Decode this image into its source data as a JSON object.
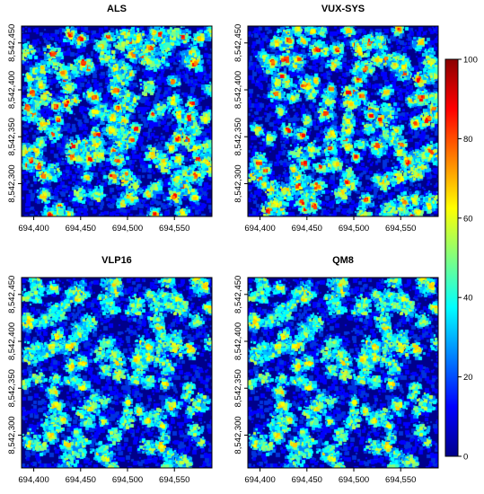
{
  "chart_data": [
    {
      "type": "heatmap",
      "title": "ALS",
      "xlabel": "",
      "ylabel": "",
      "xlim": [
        694387,
        694590
      ],
      "ylim": [
        8542265,
        8542468
      ],
      "x_ticks": [
        {
          "v": 694400,
          "label": "694,400"
        },
        {
          "v": 694450,
          "label": "694,450"
        },
        {
          "v": 694500,
          "label": "694,500"
        },
        {
          "v": 694550,
          "label": "694,550"
        }
      ],
      "y_ticks": [
        {
          "v": 8542300,
          "label": "8,542,300"
        },
        {
          "v": 8542350,
          "label": "8,542,350"
        },
        {
          "v": 8542400,
          "label": "8,542,400"
        },
        {
          "v": 8542450,
          "label": "8,542,450"
        }
      ],
      "intensity": "high",
      "seed": 11
    },
    {
      "type": "heatmap",
      "title": "VUX-SYS",
      "xlabel": "",
      "ylabel": "",
      "xlim": [
        694387,
        694590
      ],
      "ylim": [
        8542265,
        8542468
      ],
      "x_ticks": [
        {
          "v": 694400,
          "label": "694,400"
        },
        {
          "v": 694450,
          "label": "694,450"
        },
        {
          "v": 694500,
          "label": "694,500"
        },
        {
          "v": 694550,
          "label": "694,550"
        }
      ],
      "y_ticks": [
        {
          "v": 8542300,
          "label": "8,542,300"
        },
        {
          "v": 8542350,
          "label": "8,542,350"
        },
        {
          "v": 8542400,
          "label": "8,542,400"
        },
        {
          "v": 8542450,
          "label": "8,542,450"
        }
      ],
      "intensity": "high",
      "seed": 23
    },
    {
      "type": "heatmap",
      "title": "VLP16",
      "xlabel": "",
      "ylabel": "",
      "xlim": [
        694387,
        694590
      ],
      "ylim": [
        8542265,
        8542468
      ],
      "x_ticks": [
        {
          "v": 694400,
          "label": "694,400"
        },
        {
          "v": 694450,
          "label": "694,450"
        },
        {
          "v": 694500,
          "label": "694,500"
        },
        {
          "v": 694550,
          "label": "694,550"
        }
      ],
      "y_ticks": [
        {
          "v": 8542300,
          "label": "8,542,300"
        },
        {
          "v": 8542350,
          "label": "8,542,350"
        },
        {
          "v": 8542400,
          "label": "8,542,400"
        },
        {
          "v": 8542450,
          "label": "8,542,450"
        }
      ],
      "intensity": "low",
      "seed": 37
    },
    {
      "type": "heatmap",
      "title": "QM8",
      "xlabel": "",
      "ylabel": "",
      "xlim": [
        694387,
        694590
      ],
      "ylim": [
        8542265,
        8542468
      ],
      "x_ticks": [
        {
          "v": 694400,
          "label": "694,400"
        },
        {
          "v": 694450,
          "label": "694,450"
        },
        {
          "v": 694500,
          "label": "694,500"
        },
        {
          "v": 694550,
          "label": "694,550"
        }
      ],
      "y_ticks": [
        {
          "v": 8542300,
          "label": "8,542,300"
        },
        {
          "v": 8542350,
          "label": "8,542,350"
        },
        {
          "v": 8542400,
          "label": "8,542,400"
        },
        {
          "v": 8542450,
          "label": "8,542,450"
        }
      ],
      "intensity": "low",
      "seed": 37
    }
  ],
  "colorbar": {
    "min": 0,
    "max": 100,
    "ticks": [
      {
        "v": 0,
        "label": "0"
      },
      {
        "v": 20,
        "label": "20"
      },
      {
        "v": 40,
        "label": "40"
      },
      {
        "v": 60,
        "label": "60"
      },
      {
        "v": 80,
        "label": "80"
      },
      {
        "v": 100,
        "label": "100"
      }
    ],
    "colors": [
      "#00008B",
      "#0000FF",
      "#0080FF",
      "#00FFFF",
      "#80FF80",
      "#FFFF00",
      "#FF8000",
      "#FF0000",
      "#8B0000"
    ]
  }
}
